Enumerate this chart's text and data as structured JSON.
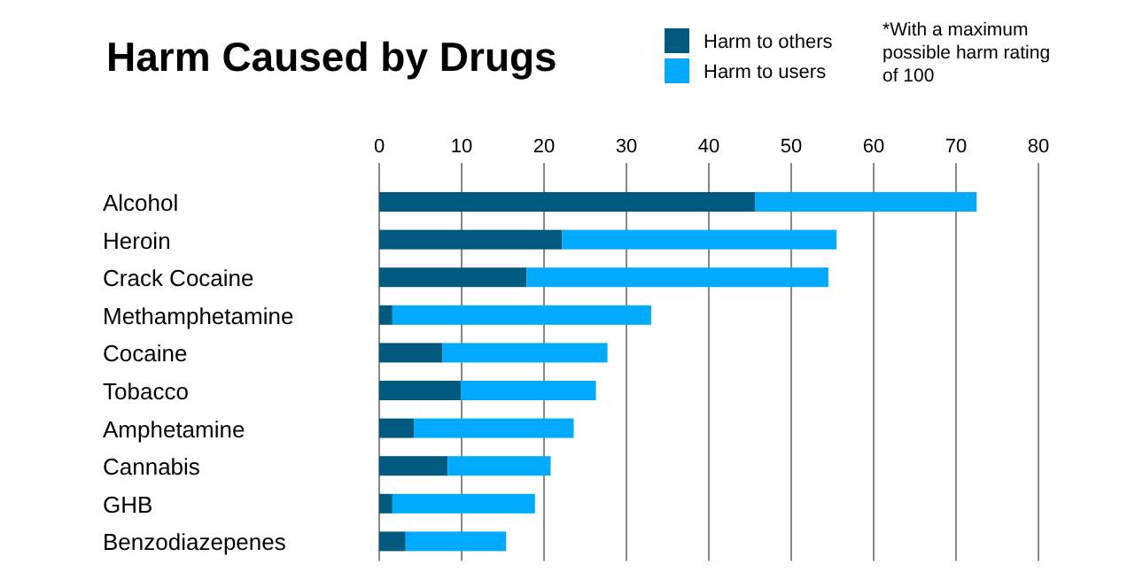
{
  "chart_data": {
    "type": "bar",
    "title": "Harm Caused by Drugs",
    "orientation": "horizontal",
    "stacked": true,
    "categories": [
      "Alcohol",
      "Heroin",
      "Crack Cocaine",
      "Methamphetamine",
      "Cocaine",
      "Tobacco",
      "Amphetamine",
      "Cannabis",
      "GHB",
      "Benzodiazepenes"
    ],
    "series": [
      {
        "name": "Harm to others",
        "color": "#005a80",
        "values": [
          45.6,
          22.2,
          17.9,
          1.6,
          7.7,
          9.9,
          4.2,
          8.3,
          1.6,
          3.2
        ]
      },
      {
        "name": "Harm to users",
        "color": "#00aaff",
        "values": [
          26.9,
          33.3,
          36.6,
          31.4,
          20.0,
          16.4,
          19.4,
          12.5,
          17.3,
          12.2
        ]
      }
    ],
    "xlim": [
      0,
      80
    ],
    "xticks": [
      0,
      10,
      20,
      30,
      40,
      50,
      60,
      70,
      80
    ],
    "grid": "x",
    "legend": "top right",
    "annotations": [
      "*With a maximum possible harm rating of 100"
    ]
  }
}
